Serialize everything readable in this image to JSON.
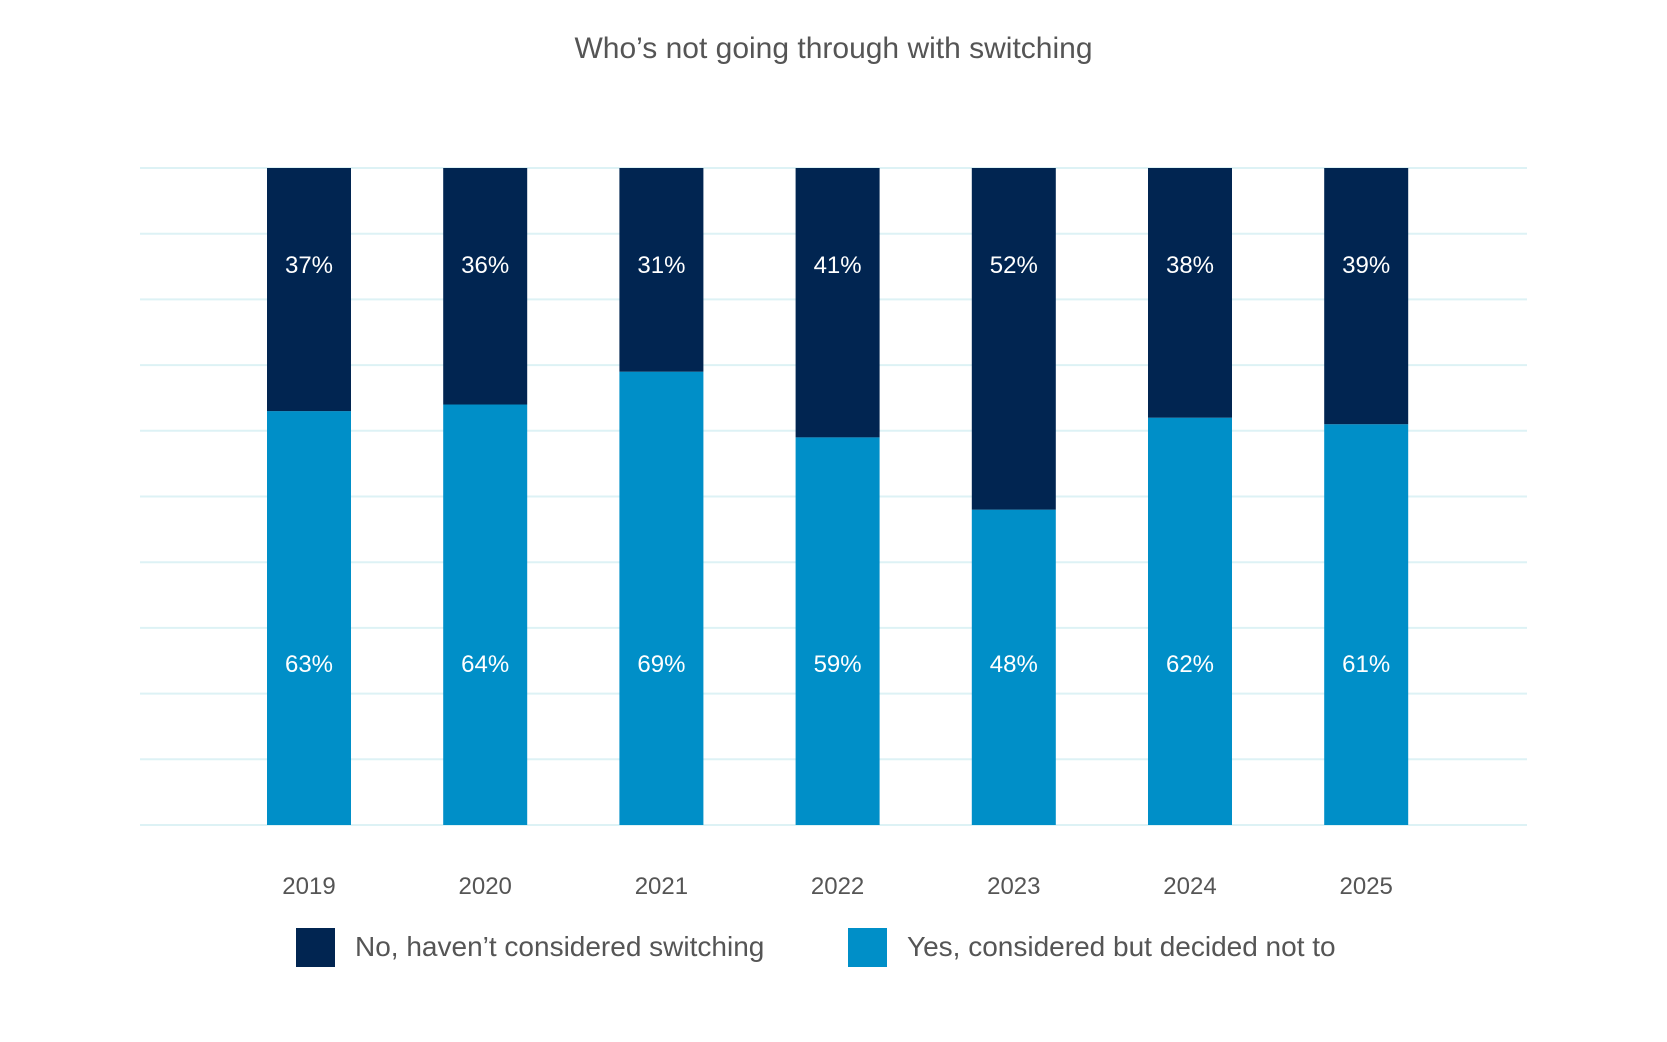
{
  "chart_data": {
    "type": "bar",
    "stacked": true,
    "title": "Who’s not going through with switching",
    "xlabel": "",
    "ylabel": "",
    "ylim": [
      0,
      100
    ],
    "grid": true,
    "legend_position": "bottom",
    "categories": [
      "2019",
      "2020",
      "2021",
      "2022",
      "2023",
      "2024",
      "2025"
    ],
    "series": [
      {
        "name": "Yes, considered but decided not to",
        "color": "#008FC8",
        "values": [
          63,
          64,
          69,
          59,
          48,
          62,
          61
        ],
        "labels": [
          "63%",
          "64%",
          "69%",
          "59%",
          "48%",
          "62%",
          "61%"
        ]
      },
      {
        "name": "No, haven’t considered switching",
        "color": "#012551",
        "values": [
          37,
          36,
          31,
          41,
          52,
          38,
          39
        ],
        "labels": [
          "37%",
          "36%",
          "31%",
          "41%",
          "52%",
          "38%",
          "39%"
        ]
      }
    ],
    "legend": [
      {
        "label": "No, haven’t considered switching",
        "color": "#012551"
      },
      {
        "label": "Yes, considered but decided not to",
        "color": "#008FC8"
      }
    ],
    "gridline_color": "#DDF2F5",
    "text_color": "#555555"
  }
}
